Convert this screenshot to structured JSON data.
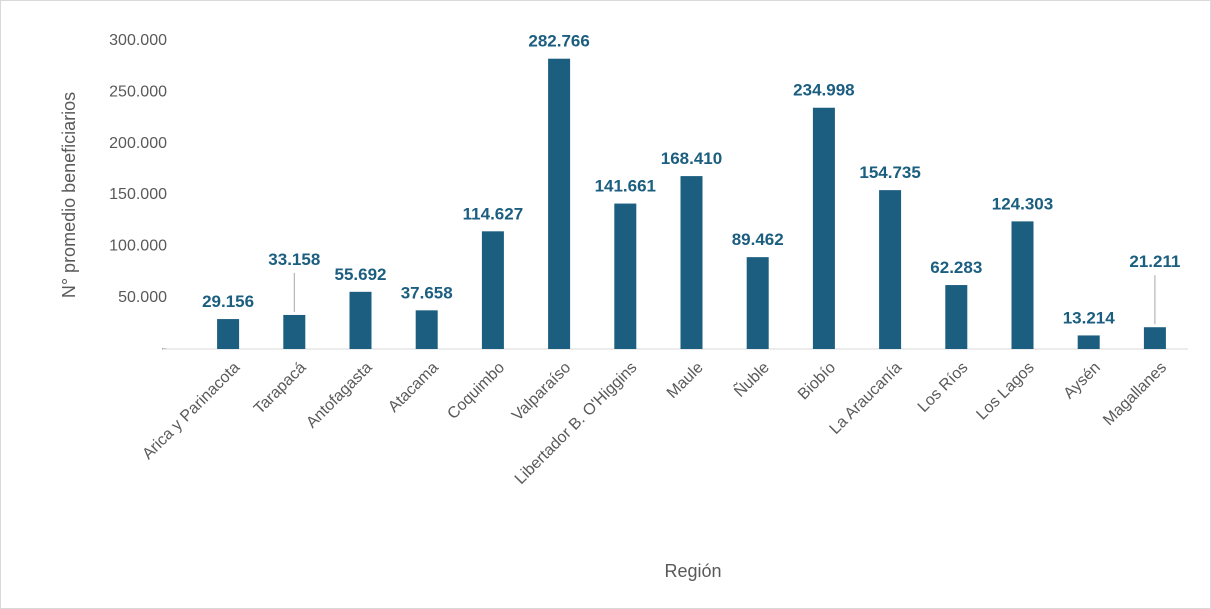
{
  "chart_data": {
    "type": "bar",
    "xlabel": "Región",
    "ylabel": "N° promedio beneficiarios",
    "categories": [
      "Arica y Parinacota",
      "Tarapacá",
      "Antofagasta",
      "Atacama",
      "Coquimbo",
      "Valparaíso",
      "Libertador B. O'Higgins",
      "Maule",
      "Ñuble",
      "Biobío",
      "La Araucanía",
      "Los Ríos",
      "Los Lagos",
      "Aysén",
      "Magallanes"
    ],
    "values": [
      29156,
      33158,
      55692,
      37658,
      114627,
      282766,
      141661,
      168410,
      89462,
      234998,
      154735,
      62283,
      124303,
      13214,
      21211
    ],
    "value_labels": [
      "29.156",
      "33.158",
      "55.692",
      "37.658",
      "114.627",
      "282.766",
      "141.661",
      "168.410",
      "89.462",
      "234.998",
      "154.735",
      "62.283",
      "124.303",
      "13.214",
      "21.211"
    ],
    "color": "#1b5e80",
    "ylim": [
      0,
      300000
    ],
    "yticks": [
      {
        "value": 0,
        "label": "-"
      },
      {
        "value": 50000,
        "label": "50.000"
      },
      {
        "value": 100000,
        "label": "100.000"
      },
      {
        "value": 150000,
        "label": "150.000"
      },
      {
        "value": 200000,
        "label": "200.000"
      },
      {
        "value": 250000,
        "label": "250.000"
      },
      {
        "value": 300000,
        "label": "300.000"
      }
    ],
    "grid": false
  }
}
